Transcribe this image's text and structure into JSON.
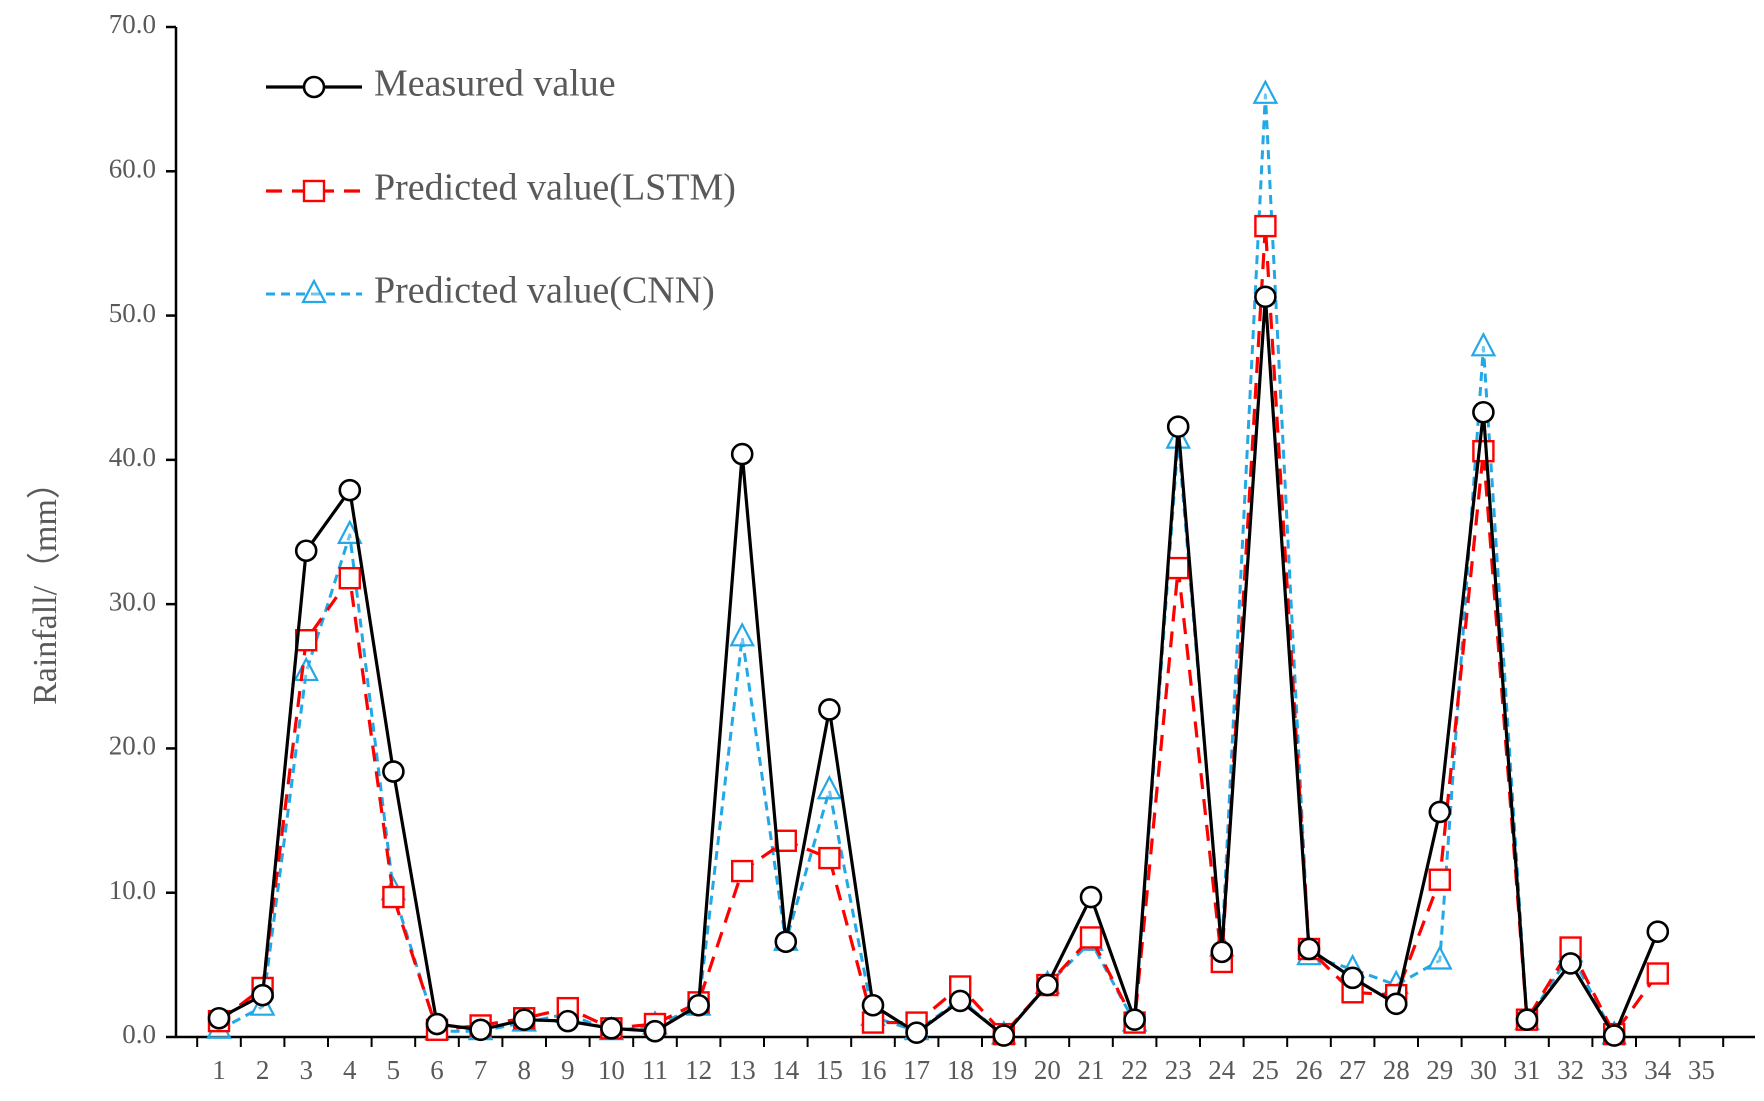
{
  "chart_data": {
    "type": "line",
    "title": "",
    "xlabel": "",
    "ylabel": "Rainfall/（mm）",
    "ylim": [
      0,
      70
    ],
    "ytick_step": 10,
    "ytick_labels": [
      "0.0",
      "10.0",
      "20.0",
      "30.0",
      "40.0",
      "50.0",
      "60.0",
      "70.0"
    ],
    "x": [
      1,
      2,
      3,
      4,
      5,
      6,
      7,
      8,
      9,
      10,
      11,
      12,
      13,
      14,
      15,
      16,
      17,
      18,
      19,
      20,
      21,
      22,
      23,
      24,
      25,
      26,
      27,
      28,
      29,
      30,
      31,
      32,
      33,
      34,
      35
    ],
    "legend_position": "top-left",
    "series": [
      {
        "name": "Measured value",
        "color": "#000000",
        "dash": "solid",
        "marker": "circle",
        "values": [
          1.3,
          2.9,
          33.7,
          37.9,
          18.4,
          0.9,
          0.5,
          1.2,
          1.1,
          0.6,
          0.4,
          2.2,
          40.4,
          6.6,
          22.7,
          2.2,
          0.3,
          2.5,
          0.1,
          3.6,
          9.7,
          1.2,
          42.3,
          5.9,
          51.3,
          6.1,
          4.1,
          2.3,
          15.6,
          43.3,
          1.2,
          5.1,
          0.1,
          7.3,
          null
        ]
      },
      {
        "name": "Predicted value(LSTM)",
        "color": "#ff0000",
        "dash": "long-dash",
        "marker": "square",
        "values": [
          1.1,
          3.4,
          27.5,
          31.8,
          9.7,
          0.5,
          0.8,
          1.3,
          2.0,
          0.6,
          0.9,
          2.4,
          11.5,
          13.6,
          12.4,
          1.0,
          1.0,
          3.5,
          0.2,
          3.6,
          6.9,
          1.0,
          32.5,
          5.2,
          56.2,
          6.1,
          3.1,
          2.9,
          10.9,
          40.6,
          1.2,
          6.2,
          0.2,
          4.4,
          null
        ]
      },
      {
        "name": "Predicted value(CNN)",
        "color": "#22a8e6",
        "dash": "short-dash",
        "marker": "triangle",
        "values": [
          0.5,
          2.1,
          25.3,
          34.8,
          10.1,
          0.4,
          0.4,
          1.0,
          1.6,
          0.4,
          0.8,
          2.1,
          27.7,
          6.6,
          17.1,
          1.4,
          0.4,
          2.6,
          0.1,
          3.6,
          6.6,
          1.0,
          41.4,
          6.2,
          65.3,
          5.6,
          4.7,
          3.6,
          5.3,
          47.8,
          1.1,
          5.8,
          0.1,
          null,
          null
        ]
      }
    ]
  }
}
